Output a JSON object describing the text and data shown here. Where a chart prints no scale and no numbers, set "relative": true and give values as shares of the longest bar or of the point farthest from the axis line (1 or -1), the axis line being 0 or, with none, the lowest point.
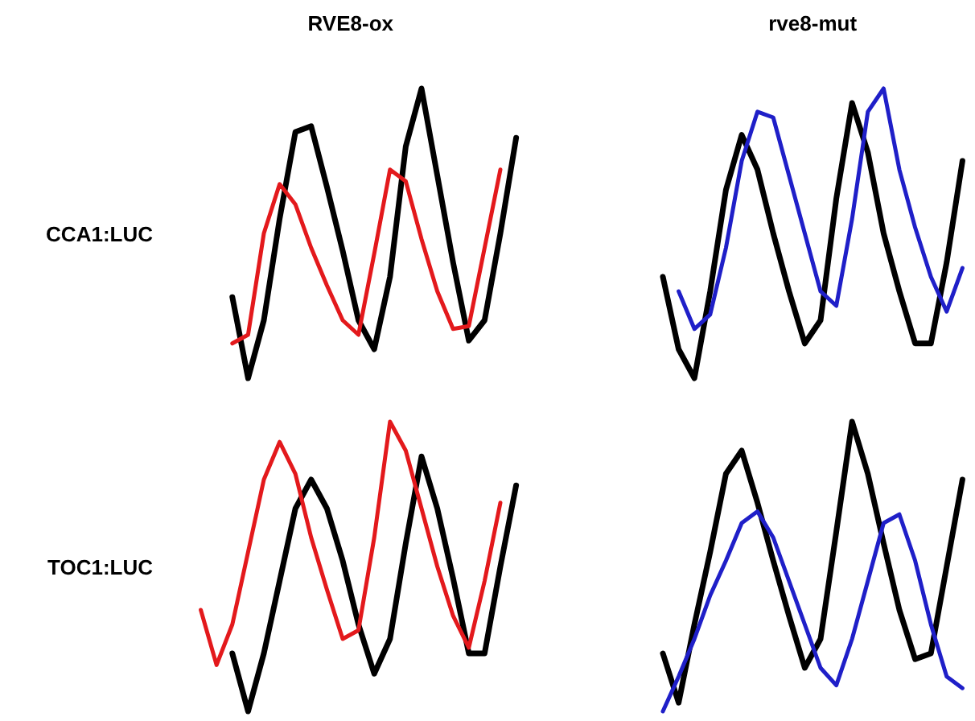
{
  "chart_data": [
    {
      "type": "line",
      "title": "RVE8-ox",
      "ylabel": "CCA1:LUC",
      "relative": true,
      "tick_labels": false,
      "categories": [
        null,
        null,
        null,
        null,
        null,
        null,
        null,
        null,
        null,
        null,
        null,
        null,
        null,
        null,
        null,
        null,
        null,
        null,
        null,
        null,
        null,
        null
      ],
      "series": [
        {
          "color": "#000000",
          "values": [
            null,
            null,
            null,
            0.28,
            0,
            0.2,
            0.55,
            0.85,
            0.87,
            0.66,
            0.44,
            0.2,
            0.1,
            0.35,
            0.8,
            1,
            0.7,
            0.4,
            0.13,
            0.2,
            0.5,
            0.83
          ]
        },
        {
          "color": "#e3191c",
          "values": [
            null,
            null,
            null,
            0.12,
            0.15,
            0.5,
            0.67,
            0.6,
            0.45,
            0.32,
            0.2,
            0.15,
            0.43,
            0.72,
            0.68,
            0.48,
            0.3,
            0.17,
            0.18,
            0.45,
            0.72,
            null
          ]
        }
      ]
    },
    {
      "type": "line",
      "title": "rve8-mut",
      "relative": true,
      "tick_labels": false,
      "categories": [
        null,
        null,
        null,
        null,
        null,
        null,
        null,
        null,
        null,
        null,
        null,
        null,
        null,
        null,
        null,
        null,
        null,
        null,
        null,
        null
      ],
      "series": [
        {
          "color": "#000000",
          "values": [
            0.35,
            0.1,
            0,
            0.3,
            0.65,
            0.84,
            0.72,
            0.5,
            0.3,
            0.12,
            0.2,
            0.62,
            0.95,
            0.78,
            0.5,
            0.3,
            0.12,
            0.12,
            0.4,
            0.75
          ]
        },
        {
          "color": "#1f1fc8",
          "values": [
            null,
            0.3,
            0.17,
            0.22,
            0.45,
            0.75,
            0.92,
            0.9,
            0.7,
            0.5,
            0.3,
            0.25,
            0.55,
            0.92,
            1,
            0.72,
            0.52,
            0.35,
            0.23,
            0.38
          ]
        }
      ]
    },
    {
      "type": "line",
      "ylabel": "TOC1:LUC",
      "relative": true,
      "tick_labels": false,
      "categories": [
        null,
        null,
        null,
        null,
        null,
        null,
        null,
        null,
        null,
        null,
        null,
        null,
        null,
        null,
        null,
        null,
        null,
        null,
        null,
        null,
        null,
        null
      ],
      "series": [
        {
          "color": "#000000",
          "values": [
            null,
            null,
            null,
            0.2,
            0,
            0.2,
            0.45,
            0.7,
            0.8,
            0.7,
            0.52,
            0.3,
            0.13,
            0.25,
            0.58,
            0.88,
            0.7,
            0.46,
            0.2,
            0.2,
            0.5,
            0.78
          ]
        },
        {
          "color": "#e3191c",
          "values": [
            null,
            0.35,
            0.16,
            0.3,
            0.55,
            0.8,
            0.93,
            0.82,
            0.6,
            0.42,
            0.25,
            0.28,
            0.6,
            1,
            0.9,
            0.7,
            0.5,
            0.33,
            0.22,
            0.45,
            0.72,
            null
          ]
        }
      ]
    },
    {
      "type": "line",
      "relative": true,
      "tick_labels": false,
      "categories": [
        null,
        null,
        null,
        null,
        null,
        null,
        null,
        null,
        null,
        null,
        null,
        null,
        null,
        null,
        null,
        null,
        null,
        null,
        null,
        null
      ],
      "series": [
        {
          "color": "#000000",
          "values": [
            0.2,
            0.03,
            0.3,
            0.55,
            0.82,
            0.9,
            0.72,
            0.52,
            0.33,
            0.15,
            0.25,
            0.62,
            1.0,
            0.82,
            0.58,
            0.35,
            0.18,
            0.2,
            0.5,
            0.8
          ]
        },
        {
          "color": "#1f1fc8",
          "values": [
            0,
            0.12,
            0.25,
            0.4,
            0.52,
            0.65,
            0.69,
            0.6,
            0.45,
            0.3,
            0.15,
            0.09,
            0.25,
            0.45,
            0.65,
            0.68,
            0.52,
            0.3,
            0.12,
            0.08
          ]
        }
      ]
    }
  ]
}
